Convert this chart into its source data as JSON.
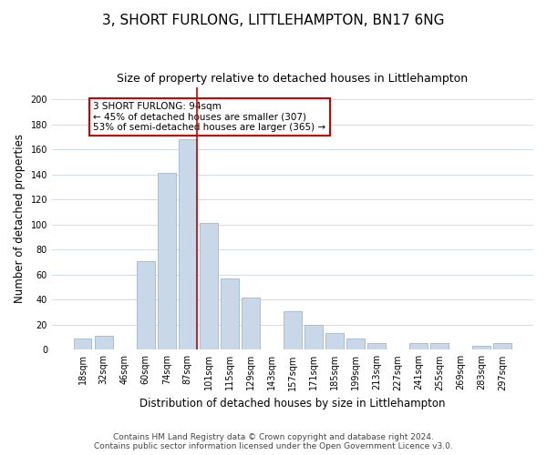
{
  "title": "3, SHORT FURLONG, LITTLEHAMPTON, BN17 6NG",
  "subtitle": "Size of property relative to detached houses in Littlehampton",
  "xlabel": "Distribution of detached houses by size in Littlehampton",
  "ylabel": "Number of detached properties",
  "footer_line1": "Contains HM Land Registry data © Crown copyright and database right 2024.",
  "footer_line2": "Contains public sector information licensed under the Open Government Licence v3.0.",
  "bar_labels": [
    "18sqm",
    "32sqm",
    "46sqm",
    "60sqm",
    "74sqm",
    "87sqm",
    "101sqm",
    "115sqm",
    "129sqm",
    "143sqm",
    "157sqm",
    "171sqm",
    "185sqm",
    "199sqm",
    "213sqm",
    "227sqm",
    "241sqm",
    "255sqm",
    "269sqm",
    "283sqm",
    "297sqm"
  ],
  "bar_heights": [
    9,
    11,
    0,
    71,
    141,
    168,
    101,
    57,
    42,
    0,
    31,
    20,
    13,
    9,
    5,
    0,
    5,
    5,
    0,
    3,
    5
  ],
  "bar_color": "#c8d8e8",
  "bar_edgecolor": "#a0b8cc",
  "vline_color": "#cc0000",
  "annotation_text": "3 SHORT FURLONG: 94sqm\n← 45% of detached houses are smaller (307)\n53% of semi-detached houses are larger (365) →",
  "annotation_box_edgecolor": "#cc0000",
  "annotation_box_facecolor": "#ffffff",
  "ylim": [
    0,
    210
  ],
  "yticks": [
    0,
    20,
    40,
    60,
    80,
    100,
    120,
    140,
    160,
    180,
    200
  ],
  "background_color": "#ffffff",
  "grid_color": "#d0dce8",
  "title_fontsize": 11,
  "subtitle_fontsize": 9,
  "axis_label_fontsize": 8.5,
  "tick_fontsize": 7,
  "annotation_fontsize": 7.5,
  "footer_fontsize": 6.5
}
